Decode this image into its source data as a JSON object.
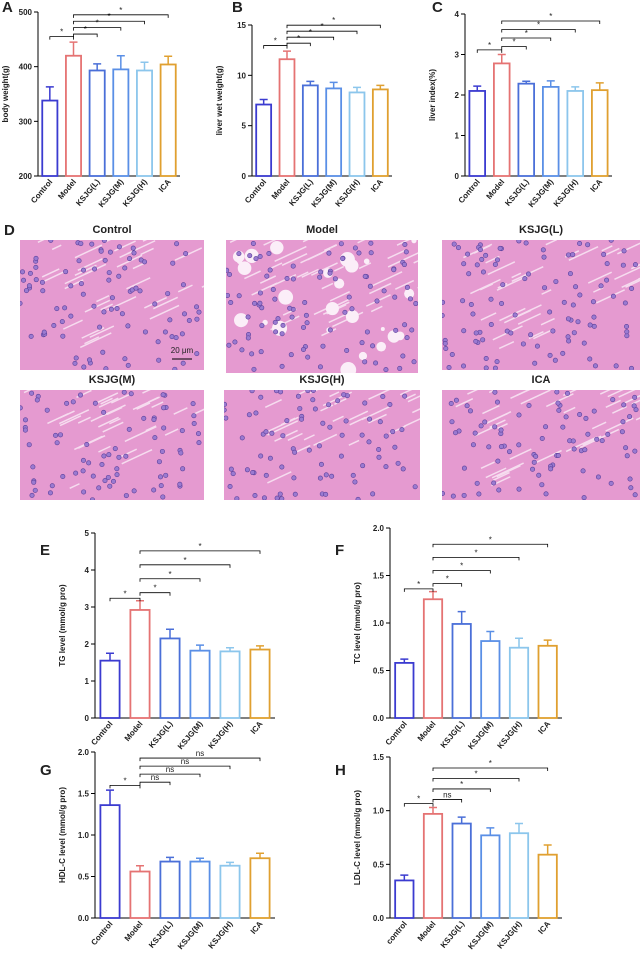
{
  "chart_data": [
    {
      "type": "bar",
      "panel": "A",
      "ylabel": "body weight(g)",
      "categories": [
        "Control",
        "Model",
        "KSJG(L)",
        "KSJG(M)",
        "KSJG(H)",
        "ICA"
      ],
      "values": [
        338,
        420,
        393,
        395,
        393,
        404
      ],
      "errors": [
        25,
        25,
        12,
        25,
        15,
        15
      ],
      "colors": [
        "#3b3bd0",
        "#e57373",
        "#4a6fd8",
        "#5a8fe6",
        "#8cc6ec",
        "#e0a030"
      ],
      "ylim": [
        200,
        500
      ],
      "yticks": [
        200,
        300,
        400,
        500
      ],
      "comparisons": [
        {
          "between": [
            "Control",
            "Model"
          ],
          "label": "*"
        },
        {
          "between": [
            "Model",
            "KSJG(L)"
          ],
          "label": "*"
        },
        {
          "between": [
            "Model",
            "KSJG(M)"
          ],
          "label": "*"
        },
        {
          "between": [
            "Model",
            "KSJG(H)"
          ],
          "label": "*"
        },
        {
          "between": [
            "Model",
            "ICA"
          ],
          "label": "*"
        }
      ]
    },
    {
      "type": "bar",
      "panel": "B",
      "ylabel": "liver wet weight(g)",
      "categories": [
        "Control",
        "Model",
        "KSJG(L)",
        "KSJG(M)",
        "KSJG(H)",
        "ICA"
      ],
      "values": [
        7.1,
        11.6,
        9.0,
        8.7,
        8.3,
        8.6
      ],
      "errors": [
        0.5,
        0.8,
        0.4,
        0.6,
        0.5,
        0.4
      ],
      "colors": [
        "#3b3bd0",
        "#e57373",
        "#4a6fd8",
        "#5a8fe6",
        "#8cc6ec",
        "#e0a030"
      ],
      "ylim": [
        0,
        15
      ],
      "yticks": [
        0,
        5,
        10,
        15
      ],
      "comparisons": [
        {
          "between": [
            "Control",
            "Model"
          ],
          "label": "*"
        },
        {
          "between": [
            "Model",
            "KSJG(L)"
          ],
          "label": "*"
        },
        {
          "between": [
            "Model",
            "KSJG(M)"
          ],
          "label": "*"
        },
        {
          "between": [
            "Model",
            "KSJG(H)"
          ],
          "label": "*"
        },
        {
          "between": [
            "Model",
            "ICA"
          ],
          "label": "*"
        }
      ]
    },
    {
      "type": "bar",
      "panel": "C",
      "ylabel": "liver index(%)",
      "categories": [
        "Control",
        "Model",
        "KSJG(L)",
        "KSJG(M)",
        "KSJG(H)",
        "ICA"
      ],
      "values": [
        2.1,
        2.78,
        2.28,
        2.2,
        2.1,
        2.12
      ],
      "errors": [
        0.12,
        0.22,
        0.06,
        0.15,
        0.1,
        0.18
      ],
      "colors": [
        "#3b3bd0",
        "#e57373",
        "#4a6fd8",
        "#5a8fe6",
        "#8cc6ec",
        "#e0a030"
      ],
      "ylim": [
        0,
        4
      ],
      "yticks": [
        0,
        1,
        2,
        3,
        4
      ],
      "comparisons": [
        {
          "between": [
            "Control",
            "Model"
          ],
          "label": "*"
        },
        {
          "between": [
            "Model",
            "KSJG(L)"
          ],
          "label": "*"
        },
        {
          "between": [
            "Model",
            "KSJG(M)"
          ],
          "label": "*"
        },
        {
          "between": [
            "Model",
            "KSJG(H)"
          ],
          "label": "*"
        },
        {
          "between": [
            "Model",
            "ICA"
          ],
          "label": "*"
        }
      ]
    },
    {
      "type": "bar",
      "panel": "E",
      "ylabel": "TG level (mmol/g pro)",
      "categories": [
        "Control",
        "Model",
        "KSJG(L)",
        "KSJG(M)",
        "KSJG(H)",
        "ICA"
      ],
      "values": [
        1.55,
        2.92,
        2.15,
        1.82,
        1.8,
        1.85
      ],
      "errors": [
        0.2,
        0.25,
        0.25,
        0.15,
        0.1,
        0.1
      ],
      "colors": [
        "#3b3bd0",
        "#e57373",
        "#4a6fd8",
        "#5a8fe6",
        "#8cc6ec",
        "#e0a030"
      ],
      "ylim": [
        0,
        5
      ],
      "yticks": [
        0,
        1,
        2,
        3,
        4,
        5
      ],
      "comparisons": [
        {
          "between": [
            "Control",
            "Model"
          ],
          "label": "*"
        },
        {
          "between": [
            "Model",
            "KSJG(L)"
          ],
          "label": "*"
        },
        {
          "between": [
            "Model",
            "KSJG(M)"
          ],
          "label": "*"
        },
        {
          "between": [
            "Model",
            "KSJG(H)"
          ],
          "label": "*"
        },
        {
          "between": [
            "Model",
            "ICA"
          ],
          "label": "*"
        }
      ]
    },
    {
      "type": "bar",
      "panel": "F",
      "ylabel": "TC level (mmol/g pro)",
      "categories": [
        "Control",
        "Model",
        "KSJG(L)",
        "KSJG(M)",
        "KSJG(H)",
        "ICA"
      ],
      "values": [
        0.58,
        1.25,
        0.99,
        0.81,
        0.74,
        0.76
      ],
      "errors": [
        0.04,
        0.08,
        0.13,
        0.1,
        0.1,
        0.06
      ],
      "colors": [
        "#3b3bd0",
        "#e57373",
        "#4a6fd8",
        "#5a8fe6",
        "#8cc6ec",
        "#e0a030"
      ],
      "ylim": [
        0,
        2
      ],
      "yticks": [
        {
          "value": 0,
          "label": "0.0"
        },
        0.5,
        {
          "value": 1,
          "label": "1.0"
        },
        1.5,
        {
          "value": 2,
          "label": "2.0"
        }
      ],
      "comparisons": [
        {
          "between": [
            "Control",
            "Model"
          ],
          "label": "*"
        },
        {
          "between": [
            "Model",
            "KSJG(L)"
          ],
          "label": "*"
        },
        {
          "between": [
            "Model",
            "KSJG(M)"
          ],
          "label": "*"
        },
        {
          "between": [
            "Model",
            "KSJG(H)"
          ],
          "label": "*"
        },
        {
          "between": [
            "Model",
            "ICA"
          ],
          "label": "*"
        }
      ]
    },
    {
      "type": "bar",
      "panel": "G",
      "ylabel": "HDL-C level (mmol/g pro)",
      "categories": [
        "Control",
        "Model",
        "KSJG(L)",
        "KSJG(M)",
        "KSJG(H)",
        "ICA"
      ],
      "values": [
        1.36,
        0.56,
        0.68,
        0.68,
        0.63,
        0.72
      ],
      "errors": [
        0.18,
        0.07,
        0.05,
        0.04,
        0.04,
        0.06
      ],
      "colors": [
        "#3b3bd0",
        "#e57373",
        "#4a6fd8",
        "#5a8fe6",
        "#8cc6ec",
        "#e0a030"
      ],
      "ylim": [
        0,
        2
      ],
      "yticks": [
        {
          "value": 0,
          "label": "0.0"
        },
        0.5,
        {
          "value": 1,
          "label": "1.0"
        },
        1.5,
        {
          "value": 2,
          "label": "2.0"
        }
      ],
      "comparisons": [
        {
          "between": [
            "Control",
            "Model"
          ],
          "label": "*"
        },
        {
          "between": [
            "Model",
            "KSJG(L)"
          ],
          "label": "ns"
        },
        {
          "between": [
            "Model",
            "KSJG(M)"
          ],
          "label": "ns"
        },
        {
          "between": [
            "Model",
            "KSJG(H)"
          ],
          "label": "ns"
        },
        {
          "between": [
            "Model",
            "ICA"
          ],
          "label": "ns"
        }
      ]
    },
    {
      "type": "bar",
      "panel": "H",
      "ylabel": "LDL-C level (mmol/g pro)",
      "categories": [
        "control",
        "Model",
        "KSJG(L)",
        "KSJG(M)",
        "KSJG(H)",
        "ICA"
      ],
      "values": [
        0.35,
        0.97,
        0.88,
        0.77,
        0.79,
        0.59
      ],
      "errors": [
        0.05,
        0.06,
        0.06,
        0.07,
        0.09,
        0.09
      ],
      "colors": [
        "#3b3bd0",
        "#e57373",
        "#4a6fd8",
        "#5a8fe6",
        "#8cc6ec",
        "#e0a030"
      ],
      "ylim": [
        0,
        1.5
      ],
      "yticks": [
        {
          "value": 0,
          "label": "0.0"
        },
        0.5,
        {
          "value": 1,
          "label": "1.0"
        },
        1.5
      ],
      "comparisons": [
        {
          "between": [
            "control",
            "Model"
          ],
          "label": "*"
        },
        {
          "between": [
            "Model",
            "KSJG(L)"
          ],
          "label": "ns"
        },
        {
          "between": [
            "Model",
            "KSJG(M)"
          ],
          "label": "*"
        },
        {
          "between": [
            "Model",
            "KSJG(H)"
          ],
          "label": "*"
        },
        {
          "between": [
            "Model",
            "ICA"
          ],
          "label": "*"
        }
      ]
    }
  ],
  "histology": {
    "panel": "D",
    "images": [
      {
        "title": "Control"
      },
      {
        "title": "Model"
      },
      {
        "title": "KSJG(L)"
      },
      {
        "title": "KSJG(M)"
      },
      {
        "title": "KSJG(H)"
      },
      {
        "title": "ICA"
      }
    ],
    "scale_bar": "20 μm"
  }
}
